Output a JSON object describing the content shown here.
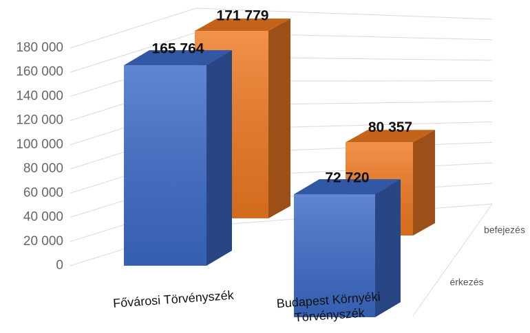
{
  "chart_data": {
    "type": "bar",
    "categories": [
      "Fővárosi Törvényszék",
      "Budapest Környéki Törvényszék"
    ],
    "series": [
      {
        "name": "érkezés",
        "color": "#3d6cc9",
        "values": [
          165764,
          72720
        ],
        "value_labels": [
          "165 764",
          "72 720"
        ]
      },
      {
        "name": "befejezés",
        "color": "#f07a22",
        "values": [
          171779,
          80357
        ],
        "value_labels": [
          "171 779",
          "80 357"
        ]
      }
    ],
    "ylim": [
      0,
      180000
    ],
    "yticks": [
      0,
      {
        "value": 20000,
        "label": "20 000"
      },
      {
        "value": 40000,
        "label": "40 000"
      },
      {
        "value": 60000,
        "label": "60 000"
      },
      {
        "value": 80000,
        "label": "80 000"
      },
      {
        "value": 100000,
        "label": "100 000"
      },
      {
        "value": 120000,
        "label": "120 000"
      },
      {
        "value": 140000,
        "label": "140 000"
      },
      {
        "value": 160000,
        "label": "160 000"
      },
      {
        "value": 180000,
        "label": "180 000"
      }
    ],
    "grid": true
  }
}
